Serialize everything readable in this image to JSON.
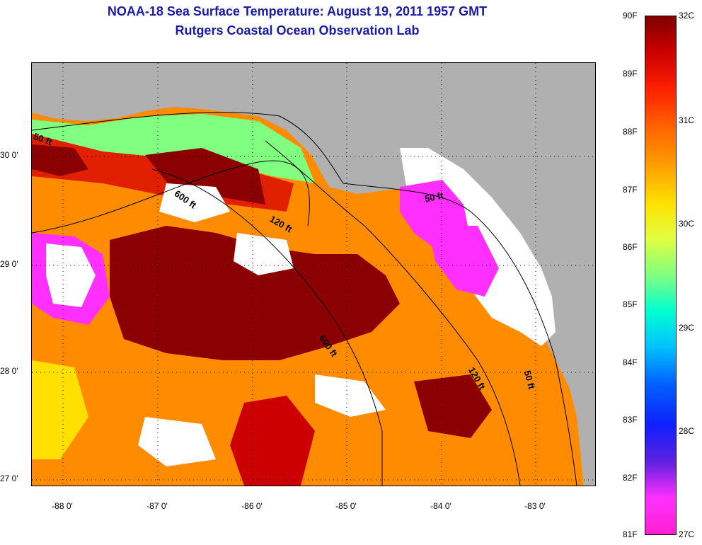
{
  "title": {
    "line1": "NOAA-18 Sea Surface Temperature:  August 19, 2011 1957 GMT",
    "line2": "Rutgers Coastal Ocean Observation Lab"
  },
  "axes": {
    "y_ticks": [
      "30 0'",
      "29 0'",
      "28 0'",
      "27 0'"
    ],
    "x_ticks": [
      "-88 0'",
      "-87 0'",
      "-86 0'",
      "-85 0'",
      "-84 0'",
      "-83 0'"
    ]
  },
  "contours": [
    {
      "label": "50 ft",
      "kind": "shallow-west"
    },
    {
      "label": "600 ft",
      "kind": "north"
    },
    {
      "label": "120 ft",
      "kind": "mid"
    },
    {
      "label": "50 ft",
      "kind": "shallow-east"
    },
    {
      "label": "600 ft",
      "kind": "central"
    },
    {
      "label": "120 ft",
      "kind": "south"
    },
    {
      "label": "50 ft",
      "kind": "south-shelf"
    }
  ],
  "colorbar": {
    "fahrenheit": [
      "90F",
      "89F",
      "88F",
      "87F",
      "86F",
      "85F",
      "84F",
      "83F",
      "82F",
      "81F"
    ],
    "celsius": [
      "32C",
      "31C",
      "30C",
      "29C",
      "28C",
      "27C"
    ],
    "colors": [
      "#800000",
      "#cc0000",
      "#ff2000",
      "#ff6000",
      "#ffa000",
      "#ffe000",
      "#e0ff40",
      "#80ff80",
      "#00ffd0",
      "#00c0ff",
      "#0060ff",
      "#1020ff",
      "#6020e0",
      "#ff30ff",
      "#ff20d0"
    ]
  },
  "map_colors": {
    "land": "#b0b0b0",
    "cloud": "#ffffff",
    "hot": "#8b0000",
    "warm": "#e02000",
    "mid": "#ff8000",
    "cool": "#ffe000",
    "cold": "#ff30ff"
  }
}
